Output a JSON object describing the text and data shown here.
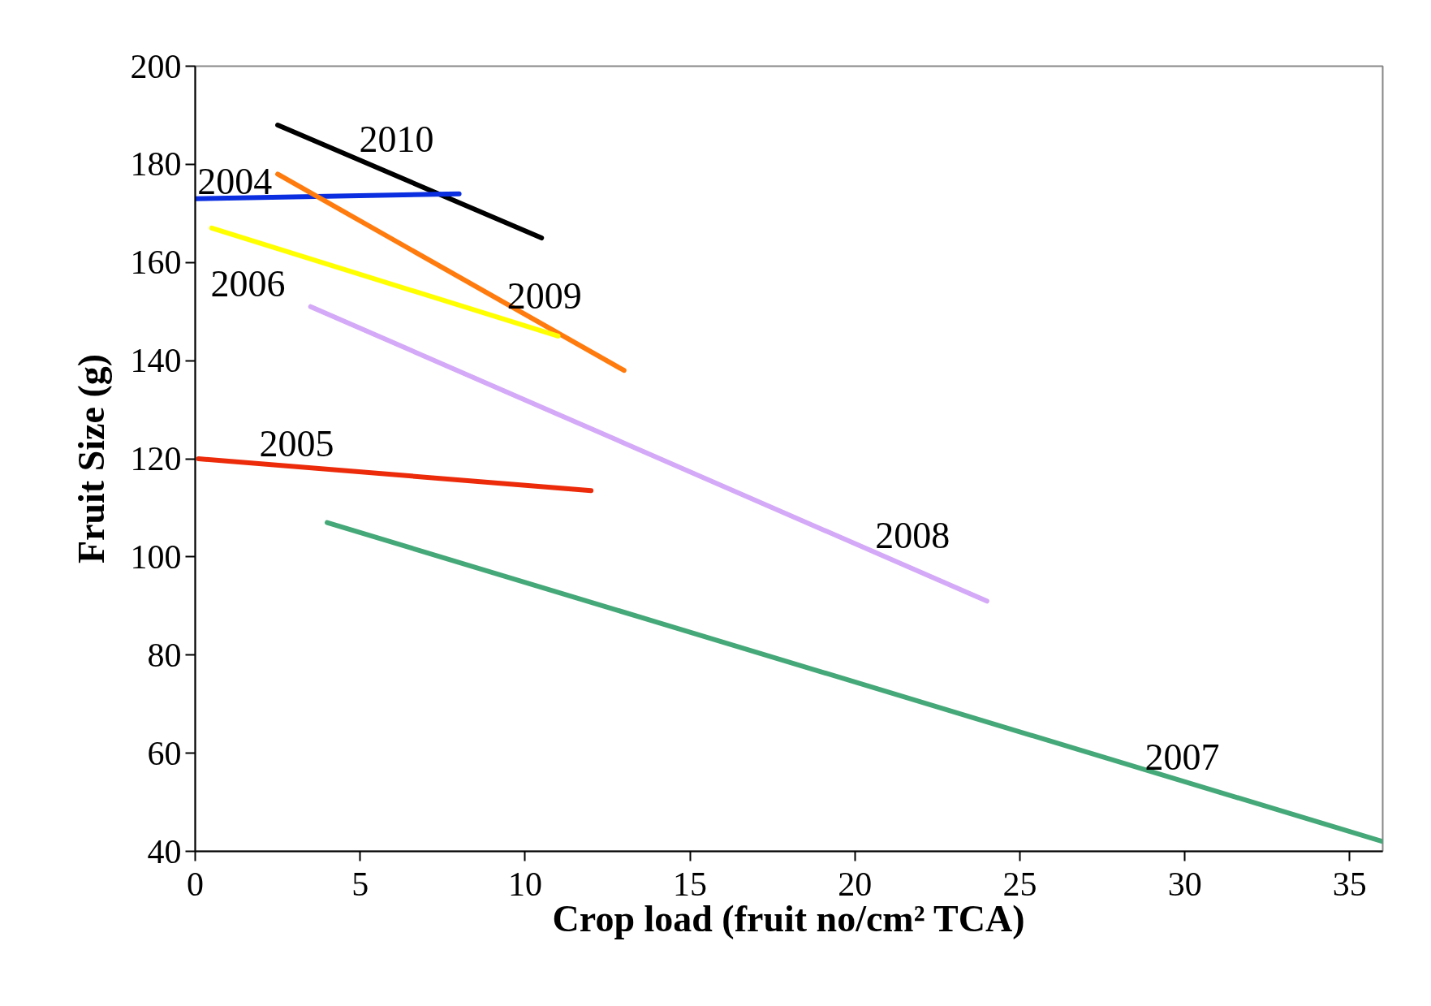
{
  "chart_data": {
    "type": "line",
    "xlabel": "Crop load (fruit no/cm² TCA)",
    "ylabel": "Fruit Size (g)",
    "xlim": [
      0,
      36
    ],
    "ylim": [
      40,
      200
    ],
    "xticks": [
      0,
      5,
      10,
      15,
      20,
      25,
      30,
      35
    ],
    "yticks": [
      40,
      60,
      80,
      100,
      120,
      140,
      160,
      180,
      200
    ],
    "grid": false,
    "legend": false,
    "marker": "none",
    "line_style": "solid",
    "series": [
      {
        "name": "2010",
        "color": "#000000",
        "x": [
          2.5,
          10.5
        ],
        "values": [
          188,
          165
        ]
      },
      {
        "name": "2004",
        "color": "#0a2ee0",
        "x": [
          0,
          8
        ],
        "values": [
          173,
          174
        ]
      },
      {
        "name": "2009",
        "color": "#ff7b0d",
        "x": [
          2.5,
          13
        ],
        "values": [
          178,
          138
        ]
      },
      {
        "name": "2006",
        "color": "#ffff00",
        "x": [
          0.5,
          11
        ],
        "values": [
          167,
          145
        ]
      },
      {
        "name": "2008",
        "color": "#d4a9f7",
        "x": [
          3.5,
          24
        ],
        "values": [
          151,
          91
        ]
      },
      {
        "name": "2005",
        "color": "#ec2b0b",
        "x": [
          0.1,
          12
        ],
        "values": [
          120,
          113.5
        ]
      },
      {
        "name": "2007",
        "color": "#45a878",
        "x": [
          4,
          36
        ],
        "values": [
          107,
          42
        ]
      }
    ]
  }
}
